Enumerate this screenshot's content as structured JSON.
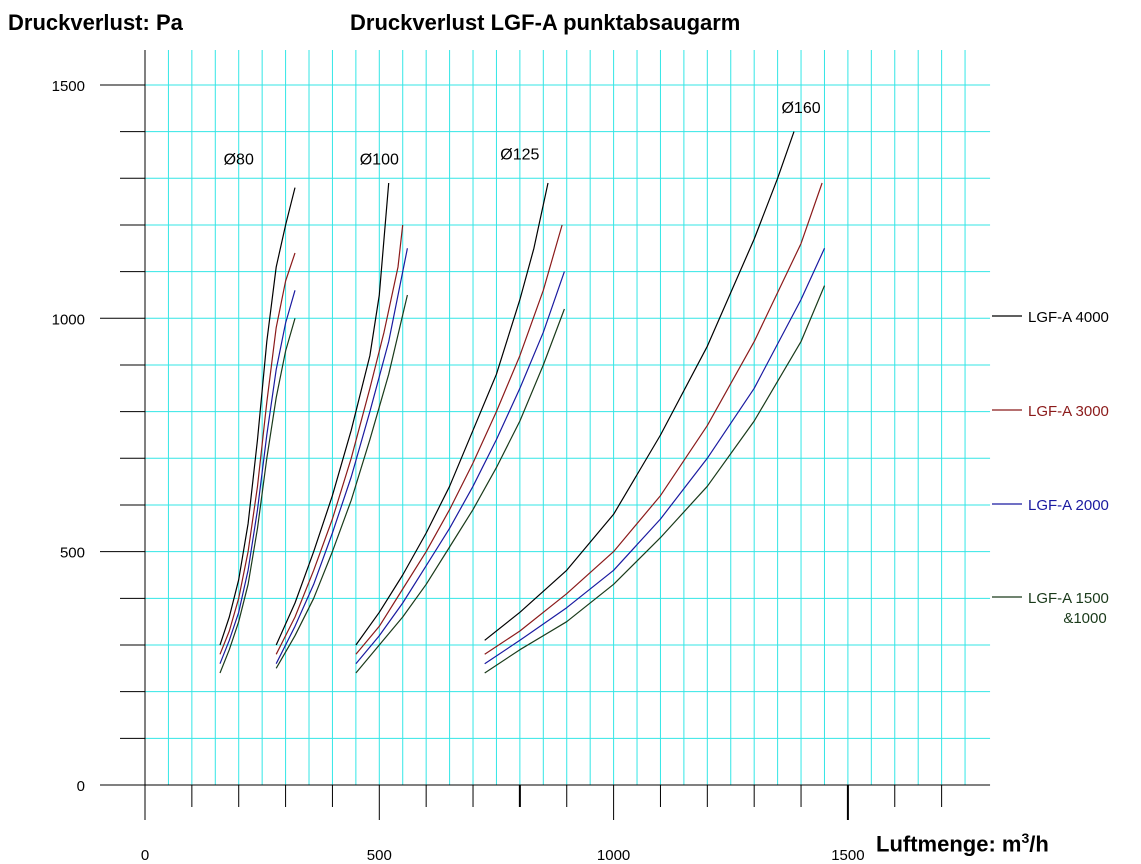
{
  "chart_data": {
    "type": "line",
    "title": "Druckverlust LGF-A punktabsaugarm",
    "ylabel": "Druckverlust: Pa",
    "xlabel_main": "Luftmenge: m",
    "xlabel_sup": "3",
    "xlabel_tail": "/h",
    "xlim": [
      0,
      1750
    ],
    "ylim": [
      0,
      1500
    ],
    "x_ticks": [
      0,
      500,
      1000,
      1500
    ],
    "x_tick_labels": [
      "0",
      "500",
      "1000",
      "1500"
    ],
    "y_ticks": [
      0,
      500,
      1000,
      1500
    ],
    "y_tick_labels": [
      "0",
      "500",
      "1000",
      "1500"
    ],
    "grid": true,
    "legend_position": "right",
    "colors": {
      "grid": "#33e6e6",
      "lgf4000": "#000000",
      "lgf3000": "#8b1a1a",
      "lgf2000": "#1a1aa0",
      "lgf1500": "#1a3a1a"
    },
    "legend": [
      {
        "key": "lgf4000",
        "label": "LGF-A 4000",
        "label2": ""
      },
      {
        "key": "lgf3000",
        "label": "LGF-A 3000",
        "label2": ""
      },
      {
        "key": "lgf2000",
        "label": "LGF-A 2000",
        "label2": ""
      },
      {
        "key": "lgf1500",
        "label": "LGF-A 1500",
        "label2": "&1000"
      }
    ],
    "groups": [
      {
        "annotation": "Ø80",
        "annotation_pos": [
          200,
          1330
        ],
        "series": [
          {
            "key": "lgf4000",
            "x": [
              160,
              180,
              200,
              220,
              240,
              260,
              280,
              300,
              320
            ],
            "y": [
              300,
              360,
              440,
              560,
              740,
              950,
              1110,
              1200,
              1280
            ]
          },
          {
            "key": "lgf3000",
            "x": [
              160,
              180,
              200,
              220,
              240,
              260,
              280,
              300,
              320
            ],
            "y": [
              280,
              330,
              400,
              500,
              640,
              820,
              980,
              1080,
              1140
            ]
          },
          {
            "key": "lgf2000",
            "x": [
              160,
              180,
              200,
              220,
              240,
              260,
              280,
              300,
              320
            ],
            "y": [
              260,
              310,
              370,
              460,
              590,
              750,
              890,
              990,
              1060
            ]
          },
          {
            "key": "lgf1500",
            "x": [
              160,
              180,
              200,
              220,
              240,
              260,
              280,
              300,
              320
            ],
            "y": [
              240,
              290,
              350,
              430,
              550,
              700,
              830,
              930,
              1000
            ]
          }
        ]
      },
      {
        "annotation": "Ø100",
        "annotation_pos": [
          500,
          1330
        ],
        "series": [
          {
            "key": "lgf4000",
            "x": [
              280,
              320,
              360,
              400,
              440,
              480,
              500,
              520
            ],
            "y": [
              300,
              390,
              500,
              620,
              760,
              920,
              1050,
              1290
            ]
          },
          {
            "key": "lgf3000",
            "x": [
              280,
              320,
              360,
              400,
              440,
              480,
              510,
              540,
              550
            ],
            "y": [
              280,
              360,
              460,
              570,
              700,
              850,
              970,
              1110,
              1200
            ]
          },
          {
            "key": "lgf2000",
            "x": [
              280,
              320,
              360,
              400,
              440,
              480,
              520,
              560
            ],
            "y": [
              260,
              340,
              430,
              540,
              660,
              800,
              950,
              1150
            ]
          },
          {
            "key": "lgf1500",
            "x": [
              280,
              320,
              360,
              400,
              440,
              480,
              520,
              560
            ],
            "y": [
              250,
              320,
              400,
              500,
              610,
              740,
              880,
              1050
            ]
          }
        ]
      },
      {
        "annotation": "Ø125",
        "annotation_pos": [
          800,
          1340
        ],
        "series": [
          {
            "key": "lgf4000",
            "x": [
              450,
              500,
              550,
              600,
              650,
              700,
              750,
              800,
              830,
              860
            ],
            "y": [
              300,
              370,
              450,
              540,
              640,
              760,
              880,
              1040,
              1150,
              1290
            ]
          },
          {
            "key": "lgf3000",
            "x": [
              450,
              500,
              550,
              600,
              650,
              700,
              750,
              800,
              850,
              890
            ],
            "y": [
              280,
              340,
              420,
              500,
              590,
              690,
              800,
              920,
              1060,
              1200
            ]
          },
          {
            "key": "lgf2000",
            "x": [
              450,
              500,
              550,
              600,
              650,
              700,
              750,
              800,
              850,
              895
            ],
            "y": [
              260,
              320,
              390,
              470,
              550,
              640,
              740,
              850,
              970,
              1100
            ]
          },
          {
            "key": "lgf1500",
            "x": [
              450,
              500,
              550,
              600,
              650,
              700,
              750,
              800,
              850,
              895
            ],
            "y": [
              240,
              300,
              360,
              430,
              510,
              590,
              680,
              780,
              900,
              1020
            ]
          }
        ]
      },
      {
        "annotation": "Ø160",
        "annotation_pos": [
          1400,
          1440
        ],
        "series": [
          {
            "key": "lgf4000",
            "x": [
              725,
              800,
              900,
              1000,
              1100,
              1200,
              1300,
              1350,
              1385
            ],
            "y": [
              310,
              370,
              460,
              580,
              750,
              940,
              1170,
              1300,
              1400
            ]
          },
          {
            "key": "lgf3000",
            "x": [
              725,
              800,
              900,
              1000,
              1100,
              1200,
              1300,
              1400,
              1445
            ],
            "y": [
              280,
              330,
              410,
              500,
              620,
              770,
              950,
              1160,
              1290
            ]
          },
          {
            "key": "lgf2000",
            "x": [
              725,
              800,
              900,
              1000,
              1100,
              1200,
              1300,
              1400,
              1450
            ],
            "y": [
              260,
              310,
              380,
              460,
              570,
              700,
              850,
              1040,
              1150
            ]
          },
          {
            "key": "lgf1500",
            "x": [
              725,
              800,
              900,
              1000,
              1100,
              1200,
              1300,
              1400,
              1450
            ],
            "y": [
              240,
              290,
              350,
              430,
              530,
              640,
              780,
              950,
              1070
            ]
          }
        ]
      }
    ]
  }
}
